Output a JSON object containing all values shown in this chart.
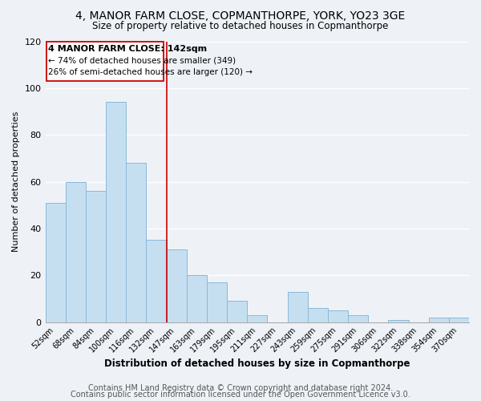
{
  "title": "4, MANOR FARM CLOSE, COPMANTHORPE, YORK, YO23 3GE",
  "subtitle": "Size of property relative to detached houses in Copmanthorpe",
  "xlabel": "Distribution of detached houses by size in Copmanthorpe",
  "ylabel": "Number of detached properties",
  "bar_color": "#c6dff0",
  "bar_edge_color": "#8ab8d8",
  "categories": [
    "52sqm",
    "68sqm",
    "84sqm",
    "100sqm",
    "116sqm",
    "132sqm",
    "147sqm",
    "163sqm",
    "179sqm",
    "195sqm",
    "211sqm",
    "227sqm",
    "243sqm",
    "259sqm",
    "275sqm",
    "291sqm",
    "306sqm",
    "322sqm",
    "338sqm",
    "354sqm",
    "370sqm"
  ],
  "values": [
    51,
    60,
    56,
    94,
    68,
    35,
    31,
    20,
    17,
    9,
    3,
    0,
    13,
    6,
    5,
    3,
    0,
    1,
    0,
    2,
    2
  ],
  "ylim": [
    0,
    120
  ],
  "yticks": [
    0,
    20,
    40,
    60,
    80,
    100,
    120
  ],
  "annotation_title": "4 MANOR FARM CLOSE: 142sqm",
  "annotation_line1": "← 74% of detached houses are smaller (349)",
  "annotation_line2": "26% of semi-detached houses are larger (120) →",
  "vline_color": "#cc0000",
  "vline_x": 5.5,
  "footer1": "Contains HM Land Registry data © Crown copyright and database right 2024.",
  "footer2": "Contains public sector information licensed under the Open Government Licence v3.0.",
  "background_color": "#eef2f7",
  "grid_color": "#ffffff",
  "title_fontsize": 10,
  "subtitle_fontsize": 8.5,
  "footer_fontsize": 7
}
